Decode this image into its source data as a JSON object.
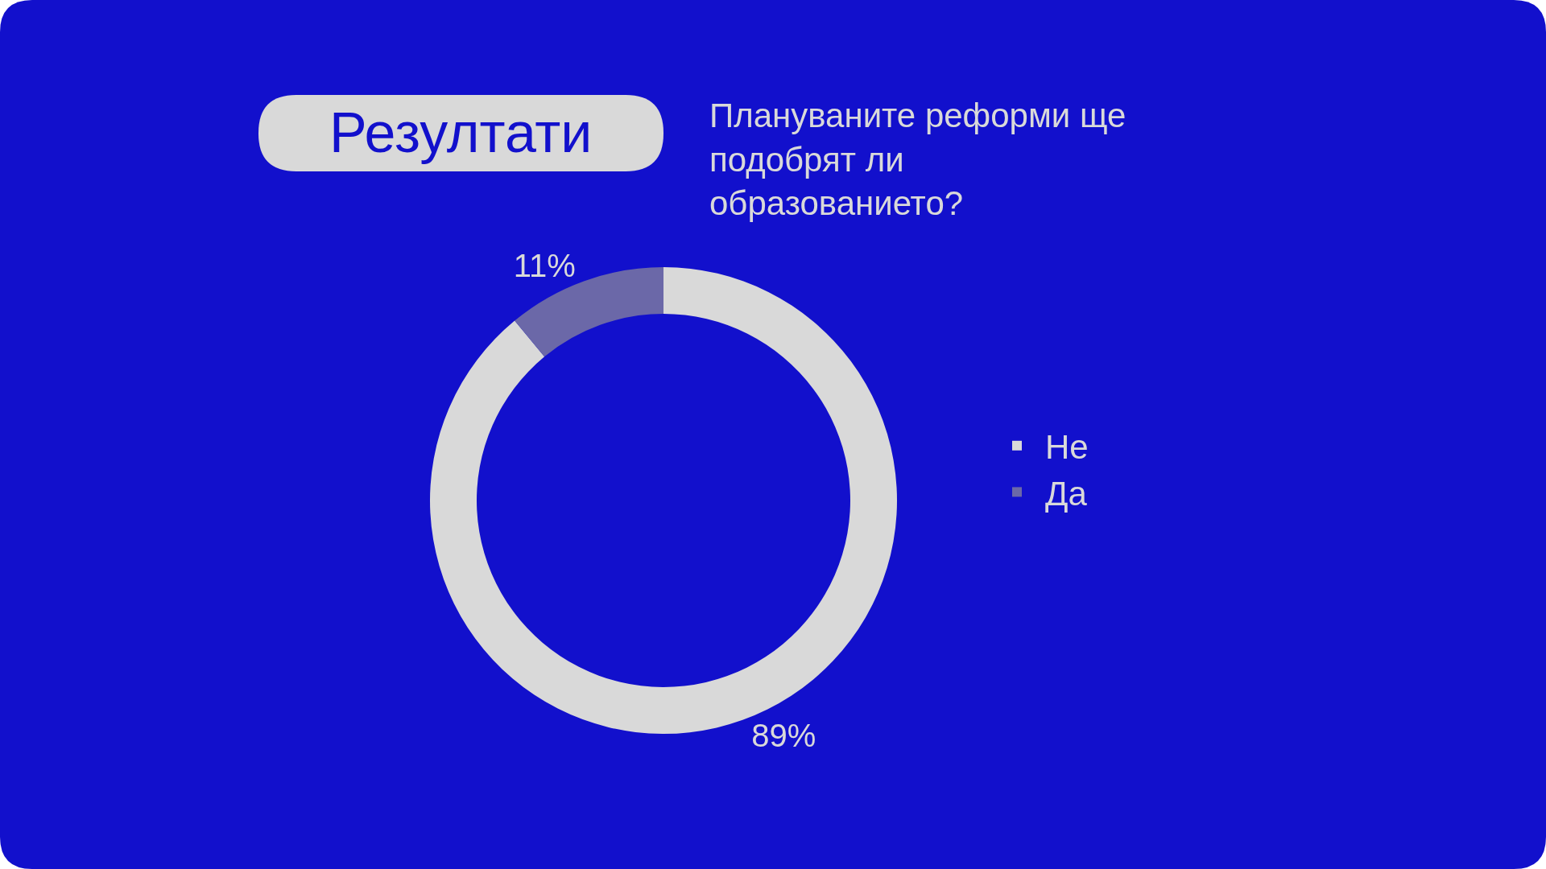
{
  "chart_data": {
    "type": "donut",
    "title": "Резултати",
    "subtitle": "Плануваните реформи ще подобрят ли образованието?",
    "categories": [
      "Не",
      "Да"
    ],
    "values": [
      89,
      11
    ],
    "colors": [
      "#d9d9d9",
      "#6b68a8"
    ],
    "value_labels": [
      "89%",
      "11%"
    ],
    "legend": "right"
  }
}
